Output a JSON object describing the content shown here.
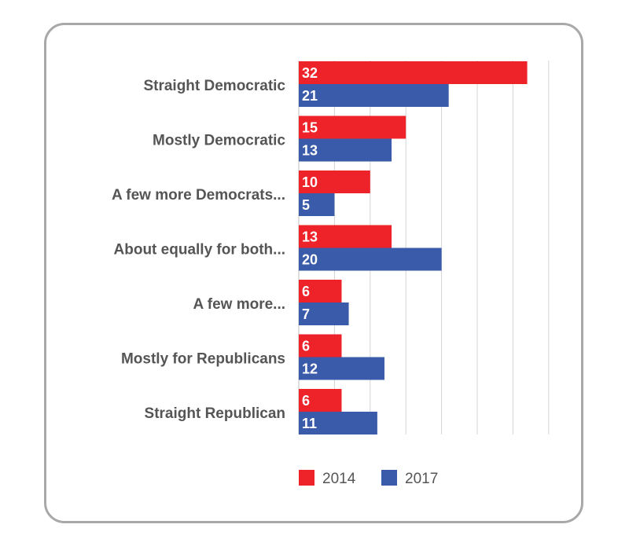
{
  "chart_data": {
    "type": "bar",
    "orientation": "horizontal",
    "title": "",
    "xlabel": "",
    "ylabel": "",
    "categories": [
      "Straight Democratic",
      "Mostly Democratic",
      "A few more Democrats...",
      "About equally for both...",
      "A few more...",
      "Mostly for Republicans",
      "Straight Republican"
    ],
    "series": [
      {
        "name": "2014",
        "color": "#ee2229",
        "values": [
          32,
          15,
          10,
          13,
          6,
          6,
          6
        ]
      },
      {
        "name": "2017",
        "color": "#3a5ba9",
        "values": [
          21,
          13,
          5,
          20,
          7,
          12,
          11
        ]
      }
    ],
    "xlim": [
      0,
      35
    ],
    "x_gridlines": [
      0,
      5,
      10,
      15,
      20,
      25,
      30,
      35
    ],
    "grid": true,
    "data_labels": true,
    "legend_position": "bottom"
  }
}
